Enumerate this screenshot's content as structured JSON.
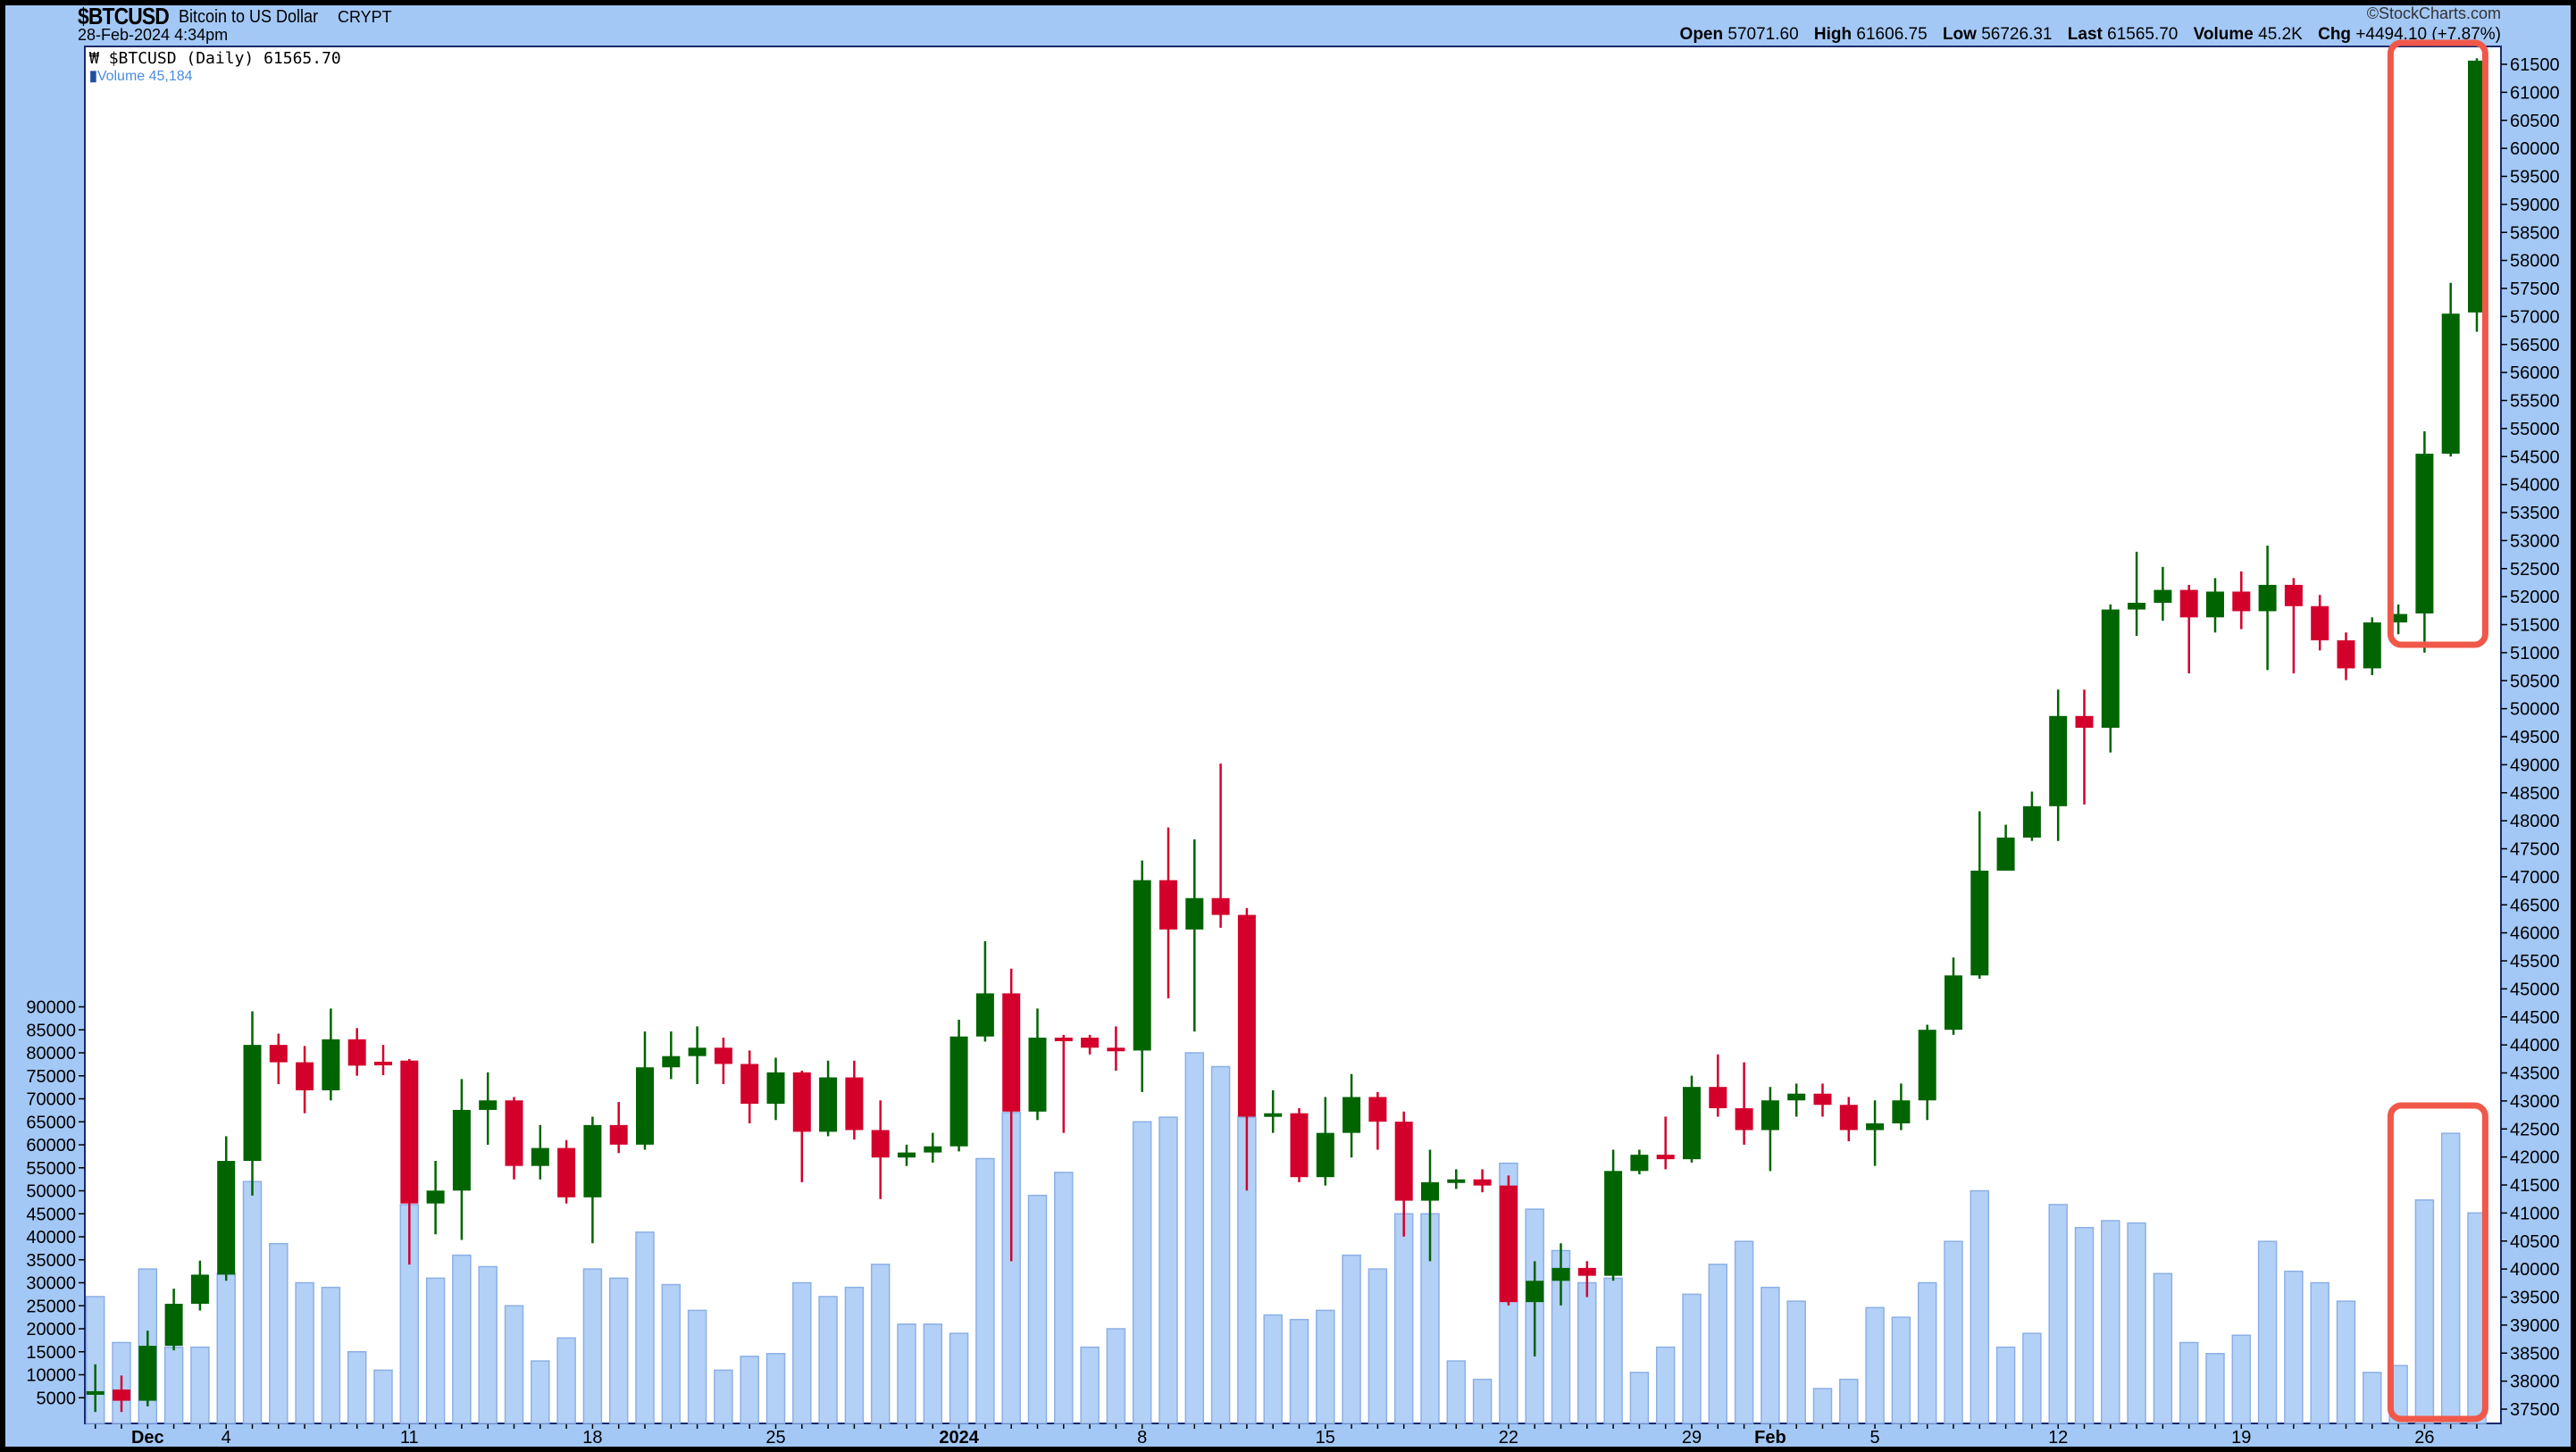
{
  "header": {
    "symbol": "$BTCUSD",
    "description": "Bitcoin to US Dollar",
    "exchange": "CRYPT",
    "timestamp": "28-Feb-2024 4:34pm",
    "copyright": "©StockCharts.com",
    "open_label": "Open",
    "open": "57071.60",
    "high_label": "High",
    "high": "61606.75",
    "low_label": "Low",
    "low": "56726.31",
    "last_label": "Last",
    "last": "61565.70",
    "volume_label": "Volume",
    "volume": "45.2K",
    "chg_label": "Chg",
    "chg": "+4494.10 (+7.87%)"
  },
  "legend": {
    "price": "$BTCUSD (Daily) 61565.70",
    "volume": "Volume 45,184"
  },
  "colors": {
    "up": "#006400",
    "down": "#d4002c",
    "volume": "#b3d0f6",
    "highlight_box": "#f0584a",
    "last_highlight": "#f5f56a",
    "background": "#a3c8f6"
  },
  "chart_data": {
    "type": "candlestick",
    "price_axis": {
      "min": 37500,
      "max": 61500,
      "step": 500,
      "position": "right"
    },
    "volume_axis": {
      "min": 0,
      "max": 90000,
      "step": 5000,
      "position": "left"
    },
    "x_tick_labels": [
      {
        "date": "2023-12-01",
        "label": "Dec",
        "bold": true
      },
      {
        "date": "2023-12-04",
        "label": "4"
      },
      {
        "date": "2023-12-11",
        "label": "11"
      },
      {
        "date": "2023-12-18",
        "label": "18"
      },
      {
        "date": "2023-12-25",
        "label": "25"
      },
      {
        "date": "2024-01-01",
        "label": "2024",
        "bold": true
      },
      {
        "date": "2024-01-08",
        "label": "8"
      },
      {
        "date": "2024-01-15",
        "label": "15"
      },
      {
        "date": "2024-01-22",
        "label": "22"
      },
      {
        "date": "2024-01-29",
        "label": "29"
      },
      {
        "date": "2024-02-01",
        "label": "Feb",
        "bold": true
      },
      {
        "date": "2024-02-05",
        "label": "5"
      },
      {
        "date": "2024-02-12",
        "label": "12"
      },
      {
        "date": "2024-02-19",
        "label": "19"
      },
      {
        "date": "2024-02-26",
        "label": "26"
      }
    ],
    "highlighted_dates": [
      "2024-02-26",
      "2024-02-27",
      "2024-02-28"
    ],
    "columns": [
      "date",
      "open",
      "high",
      "low",
      "close",
      "volume"
    ],
    "rows": [
      [
        "2023-11-29",
        37800,
        38300,
        37450,
        37820,
        27000
      ],
      [
        "2023-11-30",
        37850,
        38100,
        37450,
        37650,
        17000
      ],
      [
        "2023-12-01",
        37650,
        38900,
        37550,
        38630,
        33000
      ],
      [
        "2023-12-02",
        38630,
        39650,
        38550,
        39380,
        16000
      ],
      [
        "2023-12-03",
        39380,
        40150,
        39260,
        39900,
        16000
      ],
      [
        "2023-12-04",
        39900,
        42370,
        39790,
        41930,
        32000
      ],
      [
        "2023-12-05",
        41930,
        44600,
        41310,
        44000,
        52000
      ],
      [
        "2023-12-06",
        44000,
        44200,
        43300,
        43690,
        38500
      ],
      [
        "2023-12-07",
        43690,
        43980,
        42780,
        43190,
        30000
      ],
      [
        "2023-12-08",
        43190,
        44650,
        43010,
        44100,
        29000
      ],
      [
        "2023-12-09",
        44100,
        44300,
        43450,
        43630,
        15000
      ],
      [
        "2023-12-10",
        43700,
        44000,
        43460,
        43650,
        11000
      ],
      [
        "2023-12-11",
        43720,
        43750,
        40080,
        41170,
        47000
      ],
      [
        "2023-12-12",
        41170,
        41930,
        40620,
        41400,
        31000
      ],
      [
        "2023-12-13",
        41400,
        43390,
        40520,
        42840,
        36000
      ],
      [
        "2023-12-14",
        42840,
        43510,
        42220,
        43010,
        33500
      ],
      [
        "2023-12-15",
        43010,
        43070,
        41600,
        41840,
        25000
      ],
      [
        "2023-12-16",
        41840,
        42570,
        41600,
        42160,
        13000
      ],
      [
        "2023-12-17",
        42160,
        42300,
        41170,
        41280,
        18000
      ],
      [
        "2023-12-18",
        41280,
        42720,
        40460,
        42570,
        33000
      ],
      [
        "2023-12-19",
        42570,
        42980,
        42070,
        42220,
        31000
      ],
      [
        "2023-12-20",
        42220,
        44240,
        42130,
        43600,
        41000
      ],
      [
        "2023-12-21",
        43600,
        44240,
        43390,
        43800,
        29600
      ],
      [
        "2023-12-22",
        43800,
        44330,
        43300,
        43950,
        24000
      ],
      [
        "2023-12-23",
        43950,
        44130,
        43300,
        43660,
        11000
      ],
      [
        "2023-12-24",
        43660,
        43900,
        42600,
        42950,
        14000
      ],
      [
        "2023-12-25",
        42950,
        43770,
        42660,
        43510,
        14600
      ],
      [
        "2023-12-26",
        43510,
        43540,
        41550,
        42450,
        30000
      ],
      [
        "2023-12-27",
        42450,
        43720,
        42370,
        43420,
        27000
      ],
      [
        "2023-12-28",
        43420,
        43720,
        42310,
        42480,
        29000
      ],
      [
        "2023-12-29",
        42480,
        43010,
        41250,
        41990,
        34000
      ],
      [
        "2023-12-30",
        41990,
        42220,
        41840,
        42080,
        21000
      ],
      [
        "2023-12-31",
        42080,
        42430,
        41900,
        42190,
        21000
      ],
      [
        "2024-01-01",
        42190,
        44450,
        42100,
        44150,
        19000
      ],
      [
        "2024-01-02",
        44150,
        45850,
        44060,
        44920,
        57000
      ],
      [
        "2024-01-03",
        44920,
        45360,
        40140,
        42810,
        67000
      ],
      [
        "2024-01-04",
        42810,
        44650,
        42660,
        44130,
        49000
      ],
      [
        "2024-01-05",
        44130,
        44180,
        42430,
        44100,
        54000
      ],
      [
        "2024-01-06",
        44130,
        44180,
        43830,
        43950,
        16000
      ],
      [
        "2024-01-07",
        43950,
        44330,
        43540,
        43900,
        20000
      ],
      [
        "2024-01-08",
        43900,
        47290,
        43160,
        46940,
        65000
      ],
      [
        "2024-01-09",
        46940,
        47880,
        44830,
        46060,
        66000
      ],
      [
        "2024-01-10",
        46060,
        47670,
        44240,
        46620,
        80000
      ],
      [
        "2024-01-11",
        46620,
        49020,
        46090,
        46320,
        77000
      ],
      [
        "2024-01-12",
        46320,
        46440,
        41400,
        42720,
        66000
      ],
      [
        "2024-01-13",
        42720,
        43190,
        42430,
        42780,
        23000
      ],
      [
        "2024-01-14",
        42780,
        42870,
        41550,
        41640,
        22000
      ],
      [
        "2024-01-15",
        41640,
        43070,
        41490,
        42430,
        24000
      ],
      [
        "2024-01-16",
        42430,
        43480,
        41990,
        43070,
        36000
      ],
      [
        "2024-01-17",
        43070,
        43160,
        42130,
        42630,
        33000
      ],
      [
        "2024-01-18",
        42630,
        42810,
        40580,
        41220,
        45000
      ],
      [
        "2024-01-19",
        41220,
        42130,
        40140,
        41550,
        45000
      ],
      [
        "2024-01-20",
        41550,
        41780,
        41430,
        41600,
        13000
      ],
      [
        "2024-01-21",
        41600,
        41780,
        41370,
        41490,
        9000
      ],
      [
        "2024-01-22",
        41490,
        41670,
        39350,
        39410,
        56000
      ],
      [
        "2024-01-23",
        39410,
        40140,
        38440,
        39790,
        46000
      ],
      [
        "2024-01-24",
        39790,
        40460,
        39350,
        40020,
        37000
      ],
      [
        "2024-01-25",
        40020,
        40140,
        39500,
        39880,
        30000
      ],
      [
        "2024-01-26",
        39880,
        42130,
        39790,
        41750,
        31000
      ],
      [
        "2024-01-27",
        41750,
        42130,
        41690,
        42040,
        10500
      ],
      [
        "2024-01-28",
        42040,
        42720,
        41780,
        41960,
        16000
      ],
      [
        "2024-01-29",
        41960,
        43450,
        41900,
        43250,
        27500
      ],
      [
        "2024-01-30",
        43250,
        43830,
        42720,
        42870,
        34000
      ],
      [
        "2024-01-31",
        42870,
        43690,
        42220,
        42480,
        39000
      ],
      [
        "2024-02-01",
        42480,
        43250,
        41750,
        43010,
        29000
      ],
      [
        "2024-02-02",
        43010,
        43310,
        42720,
        43130,
        26000
      ],
      [
        "2024-02-03",
        43130,
        43310,
        42720,
        42930,
        7000
      ],
      [
        "2024-02-04",
        42930,
        43070,
        42280,
        42480,
        9000
      ],
      [
        "2024-02-05",
        42480,
        43010,
        41840,
        42600,
        24600
      ],
      [
        "2024-02-06",
        42600,
        43310,
        42480,
        43010,
        22500
      ],
      [
        "2024-02-07",
        43010,
        44360,
        42660,
        44270,
        30000
      ],
      [
        "2024-02-08",
        44270,
        45560,
        44180,
        45240,
        39000
      ],
      [
        "2024-02-09",
        45240,
        48170,
        45180,
        47110,
        50000
      ],
      [
        "2024-02-10",
        47110,
        47930,
        47110,
        47700,
        16000
      ],
      [
        "2024-02-11",
        47700,
        48520,
        47640,
        48260,
        19000
      ],
      [
        "2024-02-12",
        48260,
        50340,
        47640,
        49870,
        47000
      ],
      [
        "2024-02-13",
        49870,
        50340,
        48290,
        49660,
        42000
      ],
      [
        "2024-02-14",
        49660,
        51860,
        49220,
        51770,
        43500
      ],
      [
        "2024-02-15",
        51770,
        52800,
        51300,
        51890,
        43000
      ],
      [
        "2024-02-16",
        51890,
        52530,
        51570,
        52120,
        32000
      ],
      [
        "2024-02-17",
        52120,
        52210,
        50630,
        51630,
        17000
      ],
      [
        "2024-02-18",
        51630,
        52330,
        51360,
        52090,
        14600
      ],
      [
        "2024-02-19",
        52090,
        52450,
        51420,
        51740,
        18600
      ],
      [
        "2024-02-20",
        51740,
        52910,
        50690,
        52210,
        39000
      ],
      [
        "2024-02-21",
        52210,
        52330,
        50630,
        51830,
        32500
      ],
      [
        "2024-02-22",
        51830,
        52030,
        51040,
        51220,
        30000
      ],
      [
        "2024-02-23",
        51220,
        51360,
        50510,
        50720,
        26000
      ],
      [
        "2024-02-24",
        50720,
        51630,
        50600,
        51540,
        10500
      ],
      [
        "2024-02-25",
        51540,
        51860,
        51330,
        51690,
        12000
      ],
      [
        "2024-02-26",
        51700,
        54950,
        51000,
        54550,
        48000
      ],
      [
        "2024-02-27",
        54550,
        57600,
        54500,
        57050,
        62500
      ],
      [
        "2024-02-28",
        57071.6,
        61606.75,
        56726.31,
        61565.7,
        45184
      ]
    ]
  }
}
